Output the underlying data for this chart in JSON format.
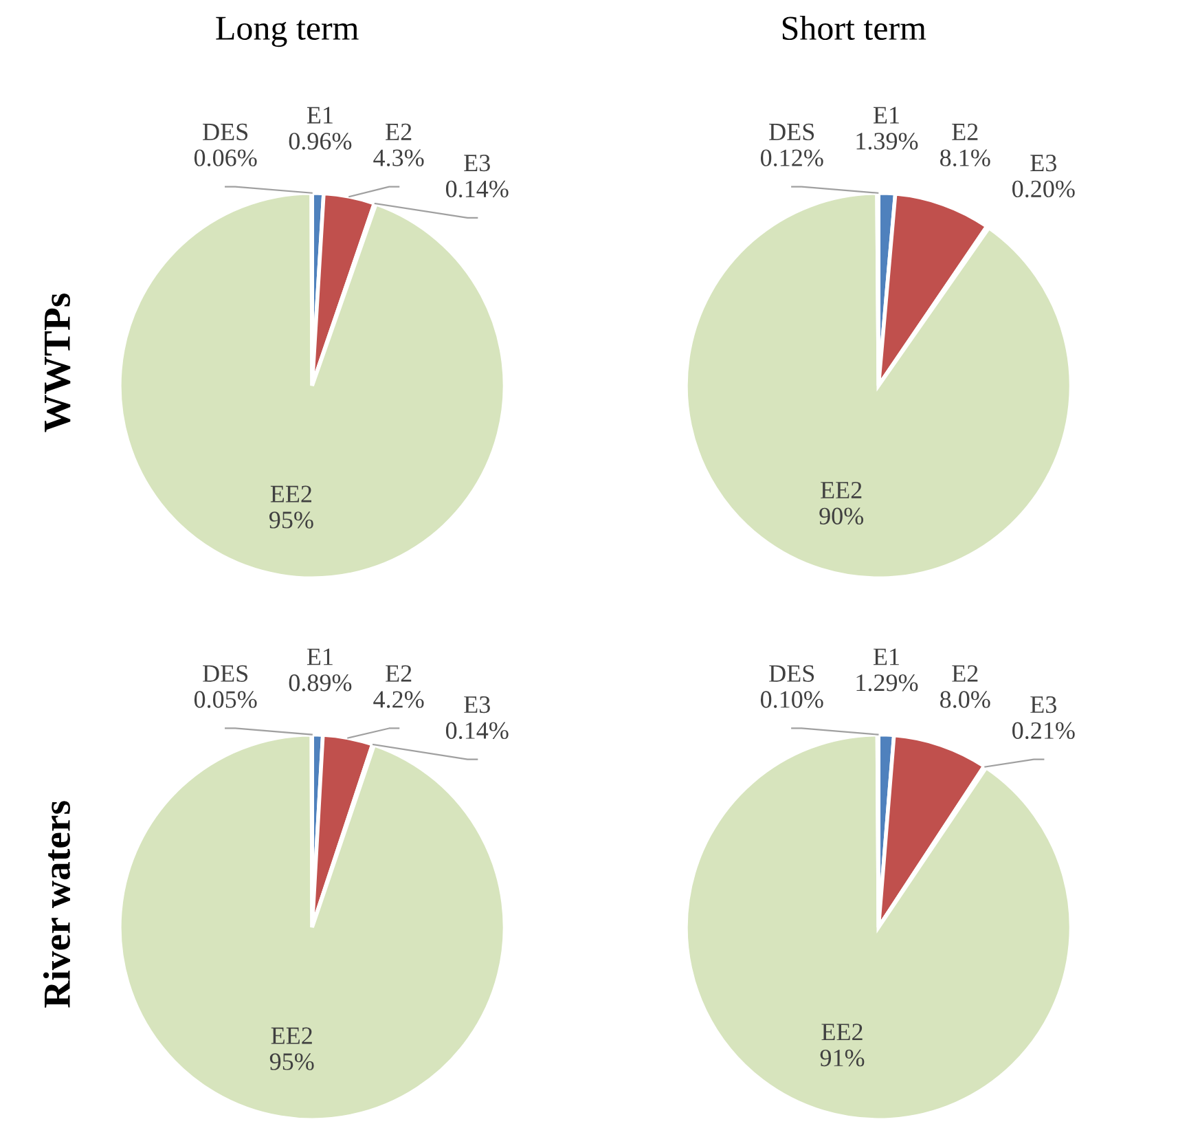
{
  "chart_data": [
    {
      "type": "pie",
      "title": "Long term",
      "ylabel": "WWTPs",
      "categories": [
        "E1",
        "E2",
        "E3",
        "EE2",
        "DES"
      ],
      "values": [
        0.96,
        4.3,
        0.14,
        95,
        0.06
      ],
      "value_labels": [
        "0.96%",
        "4.3%",
        "0.14%",
        "95%",
        "0.06%"
      ],
      "colors": [
        "#4f81bd",
        "#c0504d",
        "#9bbb59",
        "#d7e4bd",
        "#8064a2"
      ]
    },
    {
      "type": "pie",
      "title": "Short term",
      "categories": [
        "E1",
        "E2",
        "E3",
        "EE2",
        "DES"
      ],
      "values": [
        1.39,
        8.1,
        0.2,
        90,
        0.12
      ],
      "value_labels": [
        "1.39%",
        "8.1%",
        "0.20%",
        "90%",
        "0.12%"
      ],
      "colors": [
        "#4f81bd",
        "#c0504d",
        "#9bbb59",
        "#d7e4bd",
        "#8064a2"
      ]
    },
    {
      "type": "pie",
      "ylabel": "River waters",
      "categories": [
        "E1",
        "E2",
        "E3",
        "EE2",
        "DES"
      ],
      "values": [
        0.89,
        4.2,
        0.14,
        95,
        0.05
      ],
      "value_labels": [
        "0.89%",
        "4.2%",
        "0.14%",
        "95%",
        "0.05%"
      ],
      "colors": [
        "#4f81bd",
        "#c0504d",
        "#9bbb59",
        "#d7e4bd",
        "#8064a2"
      ]
    },
    {
      "type": "pie",
      "categories": [
        "E1",
        "E2",
        "E3",
        "EE2",
        "DES"
      ],
      "values": [
        1.29,
        8.0,
        0.21,
        91,
        0.1
      ],
      "value_labels": [
        "1.29%",
        "8.0%",
        "0.21%",
        "91%",
        "0.10%"
      ],
      "colors": [
        "#4f81bd",
        "#c0504d",
        "#9bbb59",
        "#d7e4bd",
        "#8064a2"
      ]
    }
  ]
}
